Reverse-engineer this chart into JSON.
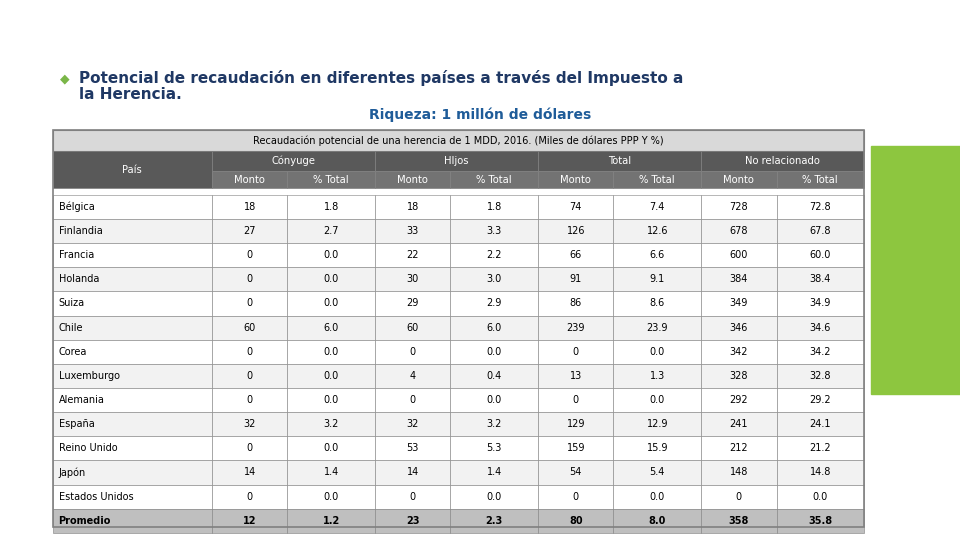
{
  "title_bullet": "Potencial de recaudación en diferentes países a través del Impuesto a\nla Herencia.",
  "subtitle": "Riqueza: 1 millón de dólares",
  "table_title": "Recaudación potencial de una herencia de 1 MDD, 2016. (Miles de dólares PPP Y %)",
  "col_groups": [
    "País",
    "Cónyuge",
    "HIjos",
    "Total",
    "No relacionado"
  ],
  "col_subheaders": [
    "Monto",
    "% Total",
    "Monto",
    "% Total",
    "Monto",
    "% Total",
    "Monto",
    "% Total"
  ],
  "countries": [
    "Bélgica",
    "Finlandia",
    "Francia",
    "Holanda",
    "Suiza",
    "Chile",
    "Corea",
    "Luxemburgo",
    "Alemania",
    "España",
    "Reino Unido",
    "Japón",
    "Estados Unidos",
    "Promedio"
  ],
  "data": [
    [
      18,
      1.8,
      18,
      1.8,
      74,
      7.4,
      728,
      72.8
    ],
    [
      27,
      2.7,
      33,
      3.3,
      126,
      12.6,
      678,
      67.8
    ],
    [
      0,
      0.0,
      22,
      2.2,
      66,
      6.6,
      600,
      60.0
    ],
    [
      0,
      0.0,
      30,
      3.0,
      91,
      9.1,
      384,
      38.4
    ],
    [
      0,
      0.0,
      29,
      2.9,
      86,
      8.6,
      349,
      34.9
    ],
    [
      60,
      6.0,
      60,
      6.0,
      239,
      23.9,
      346,
      34.6
    ],
    [
      0,
      0.0,
      0,
      0.0,
      0,
      0.0,
      342,
      34.2
    ],
    [
      0,
      0.0,
      4,
      0.4,
      13,
      1.3,
      328,
      32.8
    ],
    [
      0,
      0.0,
      0,
      0.0,
      0,
      0.0,
      292,
      29.2
    ],
    [
      32,
      3.2,
      32,
      3.2,
      129,
      12.9,
      241,
      24.1
    ],
    [
      0,
      0.0,
      53,
      5.3,
      159,
      15.9,
      212,
      21.2
    ],
    [
      14,
      1.4,
      14,
      1.4,
      54,
      5.4,
      148,
      14.8
    ],
    [
      0,
      0.0,
      0,
      0.0,
      0,
      0.0,
      0,
      0.0
    ],
    [
      12,
      1.2,
      23,
      2.3,
      80,
      8.0,
      358,
      35.8
    ]
  ],
  "bg_color": "#ffffff",
  "title_color": "#1f3864",
  "subtitle_color": "#1f5c99",
  "bullet_color": "#7ab648",
  "green_bar_color": "#8dc63f",
  "table_title_bg": "#d9d9d9",
  "table_group_bg": "#595959",
  "table_group_color": "#ffffff",
  "table_subheader_bg": "#737373",
  "table_subheader_color": "#ffffff",
  "table_alt_row_bg": "#f2f2f2",
  "table_row_bg": "#ffffff",
  "table_last_row_bg": "#bfbfbf",
  "table_border_color": "#808080",
  "table_text_color": "#000000",
  "table_title_color": "#000000"
}
